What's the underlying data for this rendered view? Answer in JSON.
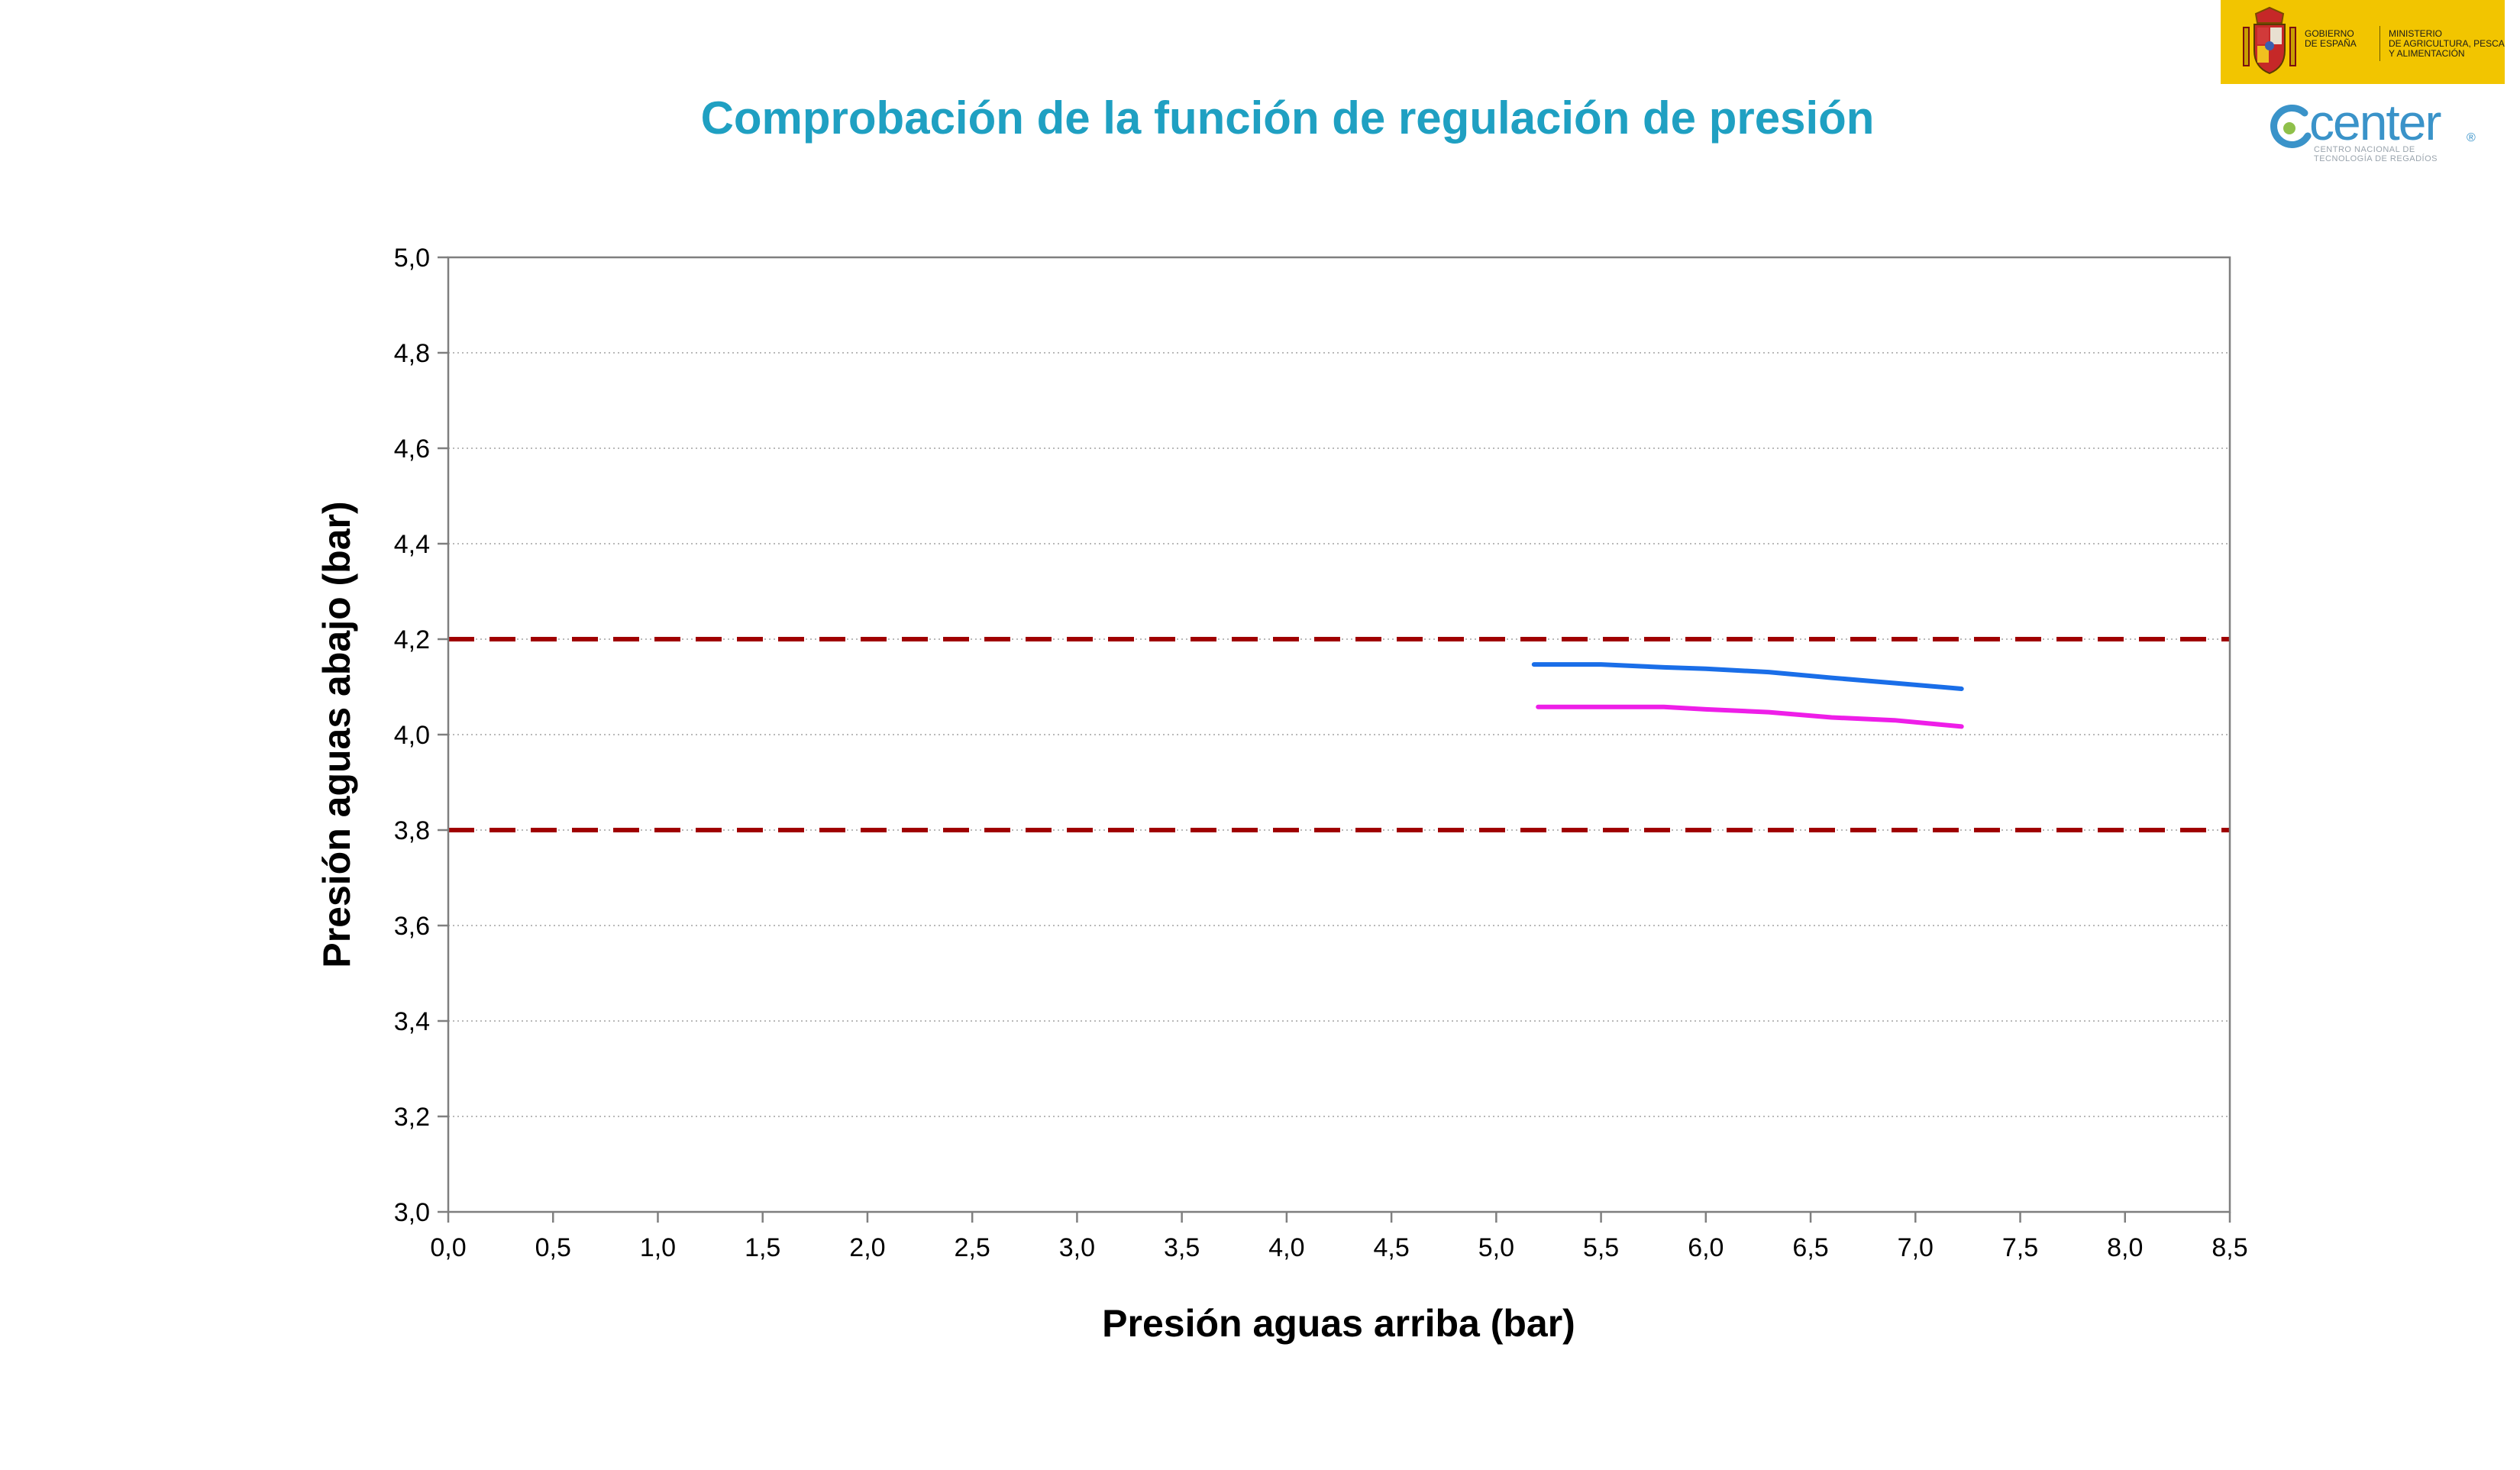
{
  "header": {
    "gov_label": "GOBIERNO\nDE ESPAÑA",
    "ministry_label": "MINISTERIO\nDE AGRICULTURA, PESCA\nY ALIMENTACIÓN",
    "center_word": "center",
    "center_registered": "®",
    "center_sub": "CENTRO NACIONAL DE\nTECNOLOGÍA DE REGADÍOS",
    "brand_yellow": "#f2c500",
    "center_blue": "#3a93c9"
  },
  "chart_data": {
    "type": "line",
    "title": "Comprobación de la función de regulación de presión",
    "xlabel": "Presión aguas arriba (bar)",
    "ylabel": "Presión aguas abajo (bar)",
    "xlim": [
      0,
      8.5
    ],
    "ylim": [
      3.0,
      5.0
    ],
    "x_ticks": [
      "0,0",
      "0,5",
      "1,0",
      "1,5",
      "2,0",
      "2,5",
      "3,0",
      "3,5",
      "4,0",
      "4,5",
      "5,0",
      "5,5",
      "6,0",
      "6,5",
      "7,0",
      "7,5",
      "8,0",
      "8,5"
    ],
    "y_ticks": [
      "3,0",
      "3,2",
      "3,4",
      "3,6",
      "3,8",
      "4,0",
      "4,2",
      "4,4",
      "4,6",
      "4,8",
      "5,0"
    ],
    "grid": "horizontal-dotted",
    "colors": {
      "title": "#1fa0c2",
      "series_1": "#1a6ee8",
      "series_2": "#ee1ee8",
      "limit": "#a00000",
      "grid": "#b9b9b9",
      "axis": "#7f7f7f"
    },
    "series": [
      {
        "x": [
          5.18,
          5.5,
          5.8,
          6.0,
          6.3,
          6.6,
          6.9,
          7.22
        ],
        "y": [
          4.147,
          4.147,
          4.141,
          4.138,
          4.131,
          4.119,
          4.108,
          4.096
        ]
      },
      {
        "x": [
          5.2,
          5.5,
          5.8,
          6.0,
          6.3,
          6.6,
          6.9,
          7.22
        ],
        "y": [
          4.058,
          4.058,
          4.058,
          4.053,
          4.047,
          4.036,
          4.03,
          4.017
        ]
      }
    ],
    "limit_lines": [
      4.2,
      3.8
    ]
  }
}
